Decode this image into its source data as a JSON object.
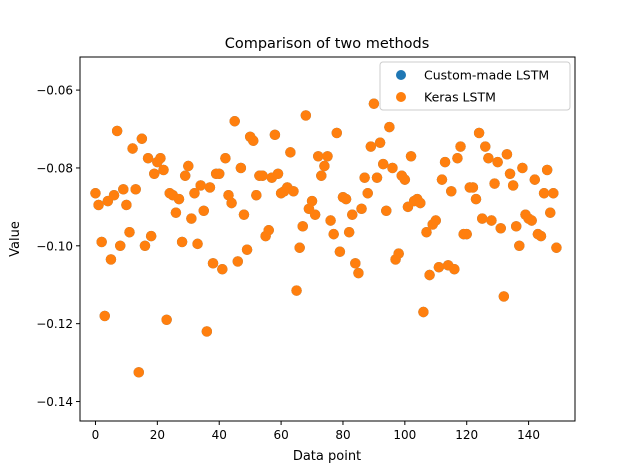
{
  "chart_data": {
    "type": "scatter",
    "title": "Comparison of two methods",
    "xlabel": "Data point",
    "ylabel": "Value",
    "xlim": [
      -5,
      155
    ],
    "ylim": [
      -0.145,
      -0.0515
    ],
    "xticks": [
      0,
      20,
      40,
      60,
      80,
      100,
      120,
      140
    ],
    "yticks": [
      -0.14,
      -0.12,
      -0.1,
      -0.08,
      -0.06
    ],
    "xtick_labels": [
      "0",
      "20",
      "40",
      "60",
      "80",
      "100",
      "120",
      "140"
    ],
    "ytick_labels": [
      "−0.14",
      "−0.12",
      "−0.10",
      "−0.08",
      "−0.06"
    ],
    "grid": false,
    "legend_position": "top-right",
    "series": [
      {
        "name": "Custom-made LSTM",
        "color": "#1f77b4",
        "x": [
          0,
          1,
          2,
          3,
          4,
          5,
          6,
          7,
          8,
          9,
          10,
          11,
          12,
          13,
          14,
          15,
          16,
          17,
          18,
          19,
          20,
          21,
          22,
          23,
          24,
          25,
          26,
          27,
          28,
          29,
          30,
          31,
          32,
          33,
          34,
          35,
          36,
          37,
          38,
          39,
          40,
          41,
          42,
          43,
          44,
          45,
          46,
          47,
          48,
          49,
          50,
          51,
          52,
          53,
          54,
          55,
          56,
          57,
          58,
          59,
          60,
          61,
          62,
          63,
          64,
          65,
          66,
          67,
          68,
          69,
          70,
          71,
          72,
          73,
          74,
          75,
          76,
          77,
          78,
          79,
          80,
          81,
          82,
          83,
          84,
          85,
          86,
          87,
          88,
          89,
          90,
          91,
          92,
          93,
          94,
          95,
          96,
          97,
          98,
          99,
          100,
          101,
          102,
          103,
          104,
          105,
          106,
          107,
          108,
          109,
          110,
          111,
          112,
          113,
          114,
          115,
          116,
          117,
          118,
          119,
          120,
          121,
          122,
          123,
          124,
          125,
          126,
          127,
          128,
          129,
          130,
          131,
          132,
          133,
          134,
          135,
          136,
          137,
          138,
          139,
          140,
          141,
          142,
          143,
          144,
          145,
          146,
          147,
          148,
          149
        ],
        "y": [
          -0.0865,
          -0.0895,
          -0.099,
          -0.118,
          -0.0885,
          -0.1035,
          -0.087,
          -0.0705,
          -0.1,
          -0.0855,
          -0.0895,
          -0.0965,
          -0.075,
          -0.0855,
          -0.1325,
          -0.0725,
          -0.1,
          -0.0775,
          -0.0975,
          -0.0815,
          -0.0785,
          -0.0775,
          -0.0805,
          -0.119,
          -0.0865,
          -0.087,
          -0.0915,
          -0.088,
          -0.099,
          -0.082,
          -0.0795,
          -0.093,
          -0.0865,
          -0.0995,
          -0.0845,
          -0.091,
          -0.122,
          -0.085,
          -0.1045,
          -0.0815,
          -0.0815,
          -0.106,
          -0.0775,
          -0.087,
          -0.089,
          -0.068,
          -0.104,
          -0.08,
          -0.092,
          -0.101,
          -0.072,
          -0.073,
          -0.087,
          -0.082,
          -0.082,
          -0.0975,
          -0.096,
          -0.0825,
          -0.0715,
          -0.0815,
          -0.0865,
          -0.086,
          -0.085,
          -0.076,
          -0.086,
          -0.1115,
          -0.1005,
          -0.095,
          -0.0665,
          -0.0905,
          -0.0885,
          -0.092,
          -0.077,
          -0.082,
          -0.0795,
          -0.077,
          -0.0935,
          -0.097,
          -0.071,
          -0.1015,
          -0.0875,
          -0.088,
          -0.0965,
          -0.092,
          -0.1045,
          -0.107,
          -0.0905,
          -0.0825,
          -0.0865,
          -0.0745,
          -0.0635,
          -0.0825,
          -0.0735,
          -0.079,
          -0.091,
          -0.0695,
          -0.08,
          -0.1035,
          -0.102,
          -0.082,
          -0.083,
          -0.09,
          -0.077,
          -0.0885,
          -0.088,
          -0.089,
          -0.117,
          -0.0965,
          -0.1075,
          -0.0945,
          -0.0935,
          -0.1055,
          -0.083,
          -0.0785,
          -0.105,
          -0.086,
          -0.106,
          -0.0775,
          -0.0745,
          -0.097,
          -0.097,
          -0.085,
          -0.085,
          -0.088,
          -0.071,
          -0.093,
          -0.0745,
          -0.0775,
          -0.0935,
          -0.084,
          -0.0785,
          -0.0955,
          -0.113,
          -0.0765,
          -0.0815,
          -0.0845,
          -0.095,
          -0.1,
          -0.08,
          -0.092,
          -0.093,
          -0.0935,
          -0.083,
          -0.097,
          -0.0975,
          -0.0865,
          -0.0805,
          -0.0915,
          -0.0865,
          -0.1005
        ]
      },
      {
        "name": "Keras LSTM",
        "color": "#ff7f0e",
        "x": [
          0,
          1,
          2,
          3,
          4,
          5,
          6,
          7,
          8,
          9,
          10,
          11,
          12,
          13,
          14,
          15,
          16,
          17,
          18,
          19,
          20,
          21,
          22,
          23,
          24,
          25,
          26,
          27,
          28,
          29,
          30,
          31,
          32,
          33,
          34,
          35,
          36,
          37,
          38,
          39,
          40,
          41,
          42,
          43,
          44,
          45,
          46,
          47,
          48,
          49,
          50,
          51,
          52,
          53,
          54,
          55,
          56,
          57,
          58,
          59,
          60,
          61,
          62,
          63,
          64,
          65,
          66,
          67,
          68,
          69,
          70,
          71,
          72,
          73,
          74,
          75,
          76,
          77,
          78,
          79,
          80,
          81,
          82,
          83,
          84,
          85,
          86,
          87,
          88,
          89,
          90,
          91,
          92,
          93,
          94,
          95,
          96,
          97,
          98,
          99,
          100,
          101,
          102,
          103,
          104,
          105,
          106,
          107,
          108,
          109,
          110,
          111,
          112,
          113,
          114,
          115,
          116,
          117,
          118,
          119,
          120,
          121,
          122,
          123,
          124,
          125,
          126,
          127,
          128,
          129,
          130,
          131,
          132,
          133,
          134,
          135,
          136,
          137,
          138,
          139,
          140,
          141,
          142,
          143,
          144,
          145,
          146,
          147,
          148,
          149
        ],
        "y": [
          -0.0865,
          -0.0895,
          -0.099,
          -0.118,
          -0.0885,
          -0.1035,
          -0.087,
          -0.0705,
          -0.1,
          -0.0855,
          -0.0895,
          -0.0965,
          -0.075,
          -0.0855,
          -0.1325,
          -0.0725,
          -0.1,
          -0.0775,
          -0.0975,
          -0.0815,
          -0.0785,
          -0.0775,
          -0.0805,
          -0.119,
          -0.0865,
          -0.087,
          -0.0915,
          -0.088,
          -0.099,
          -0.082,
          -0.0795,
          -0.093,
          -0.0865,
          -0.0995,
          -0.0845,
          -0.091,
          -0.122,
          -0.085,
          -0.1045,
          -0.0815,
          -0.0815,
          -0.106,
          -0.0775,
          -0.087,
          -0.089,
          -0.068,
          -0.104,
          -0.08,
          -0.092,
          -0.101,
          -0.072,
          -0.073,
          -0.087,
          -0.082,
          -0.082,
          -0.0975,
          -0.096,
          -0.0825,
          -0.0715,
          -0.0815,
          -0.0865,
          -0.086,
          -0.085,
          -0.076,
          -0.086,
          -0.1115,
          -0.1005,
          -0.095,
          -0.0665,
          -0.0905,
          -0.0885,
          -0.092,
          -0.077,
          -0.082,
          -0.0795,
          -0.077,
          -0.0935,
          -0.097,
          -0.071,
          -0.1015,
          -0.0875,
          -0.088,
          -0.0965,
          -0.092,
          -0.1045,
          -0.107,
          -0.0905,
          -0.0825,
          -0.0865,
          -0.0745,
          -0.0635,
          -0.0825,
          -0.0735,
          -0.079,
          -0.091,
          -0.0695,
          -0.08,
          -0.1035,
          -0.102,
          -0.082,
          -0.083,
          -0.09,
          -0.077,
          -0.0885,
          -0.088,
          -0.089,
          -0.117,
          -0.0965,
          -0.1075,
          -0.0945,
          -0.0935,
          -0.1055,
          -0.083,
          -0.0785,
          -0.105,
          -0.086,
          -0.106,
          -0.0775,
          -0.0745,
          -0.097,
          -0.097,
          -0.085,
          -0.085,
          -0.088,
          -0.071,
          -0.093,
          -0.0745,
          -0.0775,
          -0.0935,
          -0.084,
          -0.0785,
          -0.0955,
          -0.113,
          -0.0765,
          -0.0815,
          -0.0845,
          -0.095,
          -0.1,
          -0.08,
          -0.092,
          -0.093,
          -0.0935,
          -0.083,
          -0.097,
          -0.0975,
          -0.0865,
          -0.0805,
          -0.0915,
          -0.0865,
          -0.1005
        ]
      }
    ]
  }
}
